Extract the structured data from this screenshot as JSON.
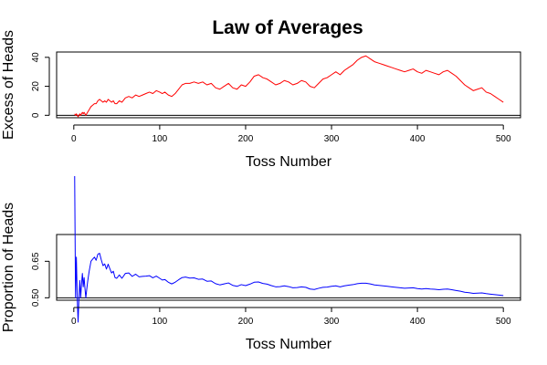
{
  "title": "Law of Averages",
  "colors": {
    "excess": "#ff0000",
    "proportion": "#0000ff",
    "reference": "#000000"
  },
  "chart_data": [
    {
      "type": "line",
      "ylabel": "Excess of Heads",
      "xlabel": "Toss Number",
      "xlim": [
        0,
        500
      ],
      "ylim": [
        0,
        42
      ],
      "x_ticks": [
        0,
        100,
        200,
        300,
        400,
        500
      ],
      "y_ticks": [
        0,
        20,
        40
      ],
      "reference_y": 0,
      "series": [
        {
          "color": "#ff0000",
          "x": [
            1,
            2,
            3,
            4,
            5,
            6,
            7,
            8,
            9,
            10,
            11,
            12,
            13,
            14,
            15,
            16,
            17,
            18,
            20,
            22,
            24,
            26,
            28,
            30,
            32,
            34,
            36,
            38,
            40,
            42,
            44,
            46,
            48,
            50,
            53,
            56,
            60,
            64,
            68,
            72,
            76,
            80,
            84,
            88,
            92,
            96,
            100,
            103,
            106,
            110,
            114,
            118,
            122,
            126,
            130,
            135,
            140,
            145,
            150,
            155,
            160,
            165,
            170,
            175,
            180,
            185,
            190,
            195,
            200,
            205,
            210,
            215,
            220,
            225,
            230,
            235,
            240,
            245,
            250,
            255,
            260,
            265,
            270,
            275,
            280,
            285,
            290,
            295,
            300,
            305,
            310,
            315,
            320,
            325,
            330,
            335,
            340,
            345,
            350,
            355,
            360,
            365,
            370,
            375,
            380,
            385,
            390,
            395,
            400,
            405,
            410,
            415,
            420,
            425,
            430,
            435,
            440,
            445,
            450,
            455,
            460,
            465,
            470,
            475,
            480,
            485,
            490,
            495,
            500
          ],
          "y": [
            1,
            0,
            1,
            0,
            -1,
            0,
            1,
            0,
            1,
            2,
            1,
            2,
            1,
            0,
            1,
            2,
            3,
            4,
            6,
            7,
            8,
            8,
            10,
            11,
            10,
            9,
            10,
            9,
            11,
            10,
            9,
            10,
            8,
            8,
            10,
            9,
            12,
            13,
            12,
            14,
            13,
            14,
            15,
            16,
            15,
            17,
            16,
            15,
            16,
            14,
            13,
            15,
            18,
            21,
            22,
            22,
            23,
            22,
            23,
            21,
            22,
            19,
            18,
            20,
            22,
            19,
            18,
            21,
            20,
            23,
            27,
            28,
            26,
            25,
            23,
            21,
            22,
            24,
            23,
            21,
            22,
            24,
            23,
            20,
            19,
            22,
            25,
            26,
            28,
            30,
            28,
            31,
            33,
            35,
            38,
            40,
            41,
            39,
            37,
            36,
            35,
            34,
            33,
            32,
            31,
            30,
            31,
            32,
            30,
            29,
            31,
            30,
            29,
            28,
            30,
            31,
            29,
            27,
            24,
            21,
            19,
            17,
            18,
            19,
            16,
            15,
            13,
            11,
            9
          ]
        }
      ]
    },
    {
      "type": "line",
      "ylabel": "Proportion of Heads",
      "xlabel": "Toss Number",
      "xlim": [
        0,
        500
      ],
      "ylim": [
        0.5,
        0.75
      ],
      "x_ticks": [
        0,
        100,
        200,
        300,
        400,
        500
      ],
      "y_ticks": [
        0.5,
        0.65
      ],
      "reference_y": 0.5,
      "series": [
        {
          "color": "#0000ff",
          "x": [
            1,
            2,
            3,
            4,
            5,
            6,
            7,
            8,
            9,
            10,
            11,
            12,
            13,
            14,
            15,
            16,
            17,
            18,
            20,
            22,
            24,
            26,
            28,
            30,
            32,
            34,
            36,
            38,
            40,
            42,
            44,
            46,
            48,
            50,
            53,
            56,
            60,
            64,
            68,
            72,
            76,
            80,
            84,
            88,
            92,
            96,
            100,
            103,
            106,
            110,
            114,
            118,
            122,
            126,
            130,
            135,
            140,
            145,
            150,
            155,
            160,
            165,
            170,
            175,
            180,
            185,
            190,
            195,
            200,
            205,
            210,
            215,
            220,
            225,
            230,
            235,
            240,
            245,
            250,
            255,
            260,
            265,
            270,
            275,
            280,
            285,
            290,
            295,
            300,
            305,
            310,
            315,
            320,
            325,
            330,
            335,
            340,
            345,
            350,
            355,
            360,
            365,
            370,
            375,
            380,
            385,
            390,
            395,
            400,
            405,
            410,
            415,
            420,
            425,
            430,
            435,
            440,
            445,
            450,
            455,
            460,
            465,
            470,
            475,
            480,
            485,
            490,
            495,
            500
          ],
          "y": [
            1,
            0.5,
            0.667,
            0.5,
            0.4,
            0.5,
            0.571,
            0.5,
            0.556,
            0.6,
            0.545,
            0.583,
            0.538,
            0.5,
            0.533,
            0.563,
            0.588,
            0.611,
            0.65,
            0.659,
            0.667,
            0.654,
            0.679,
            0.683,
            0.656,
            0.632,
            0.639,
            0.618,
            0.638,
            0.619,
            0.602,
            0.609,
            0.583,
            0.58,
            0.594,
            0.58,
            0.6,
            0.602,
            0.588,
            0.597,
            0.586,
            0.588,
            0.589,
            0.591,
            0.582,
            0.589,
            0.58,
            0.573,
            0.575,
            0.564,
            0.557,
            0.564,
            0.574,
            0.583,
            0.585,
            0.581,
            0.582,
            0.576,
            0.577,
            0.568,
            0.569,
            0.558,
            0.553,
            0.557,
            0.561,
            0.551,
            0.547,
            0.554,
            0.55,
            0.556,
            0.564,
            0.565,
            0.559,
            0.556,
            0.55,
            0.545,
            0.546,
            0.549,
            0.546,
            0.541,
            0.542,
            0.545,
            0.543,
            0.536,
            0.534,
            0.539,
            0.543,
            0.544,
            0.547,
            0.549,
            0.545,
            0.549,
            0.552,
            0.554,
            0.558,
            0.56,
            0.56,
            0.557,
            0.553,
            0.551,
            0.549,
            0.547,
            0.545,
            0.543,
            0.541,
            0.539,
            0.54,
            0.541,
            0.538,
            0.536,
            0.538,
            0.536,
            0.535,
            0.533,
            0.535,
            0.536,
            0.533,
            0.53,
            0.527,
            0.523,
            0.521,
            0.518,
            0.519,
            0.52,
            0.517,
            0.515,
            0.513,
            0.511,
            0.509
          ]
        }
      ]
    }
  ]
}
